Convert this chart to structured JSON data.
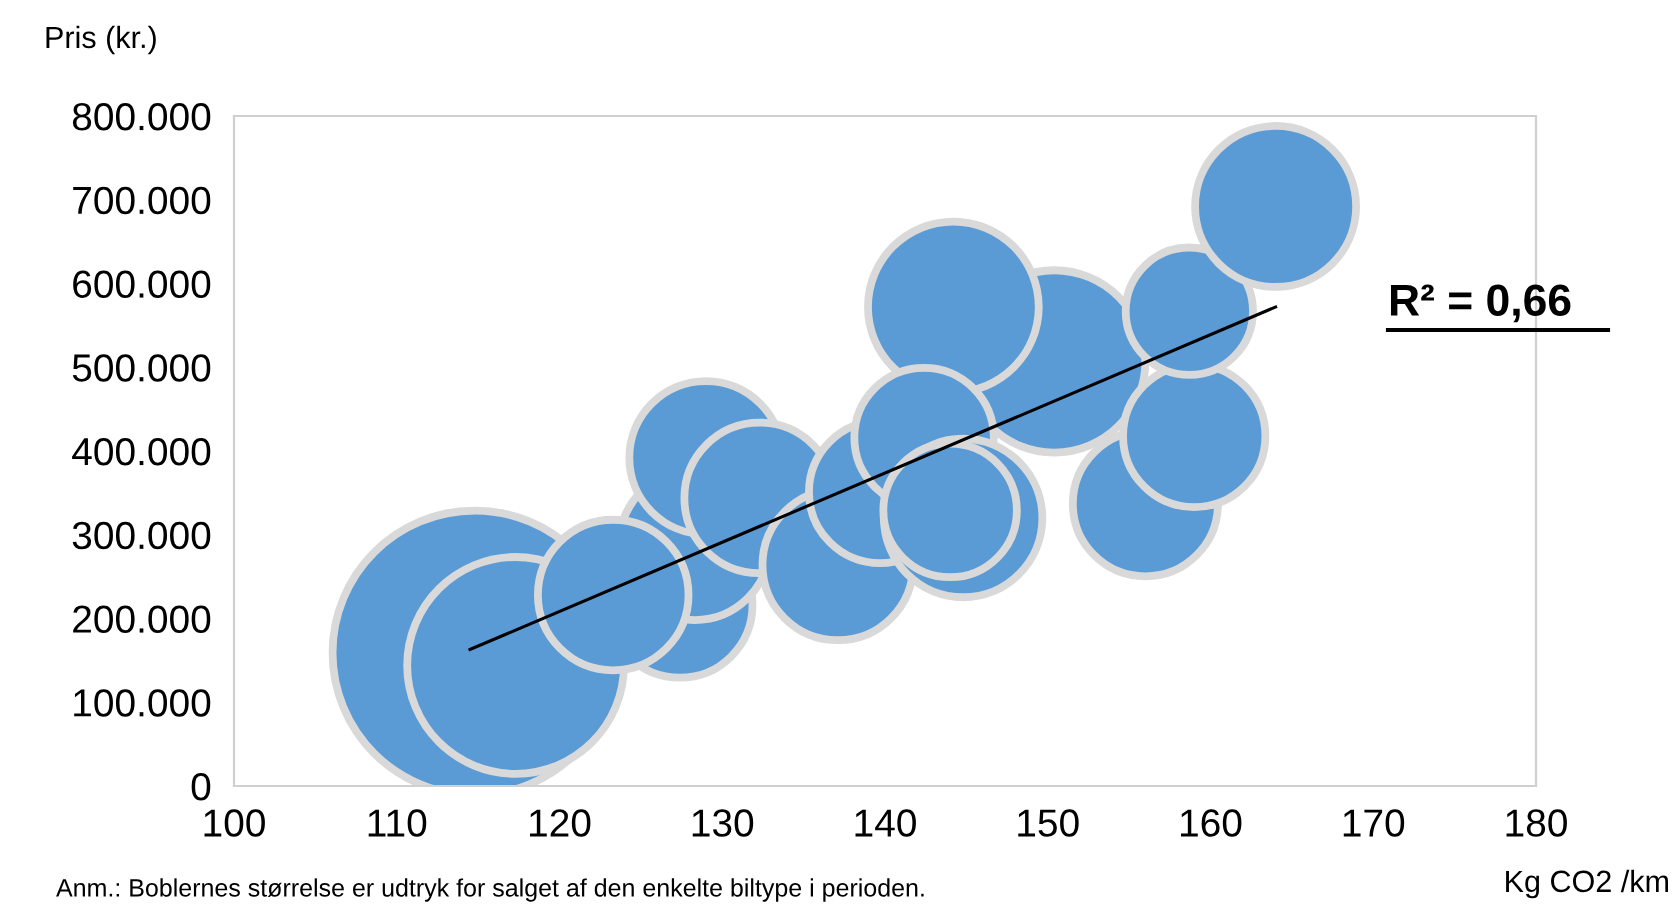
{
  "chart_data": {
    "type": "bubble",
    "relative": false,
    "xlabel": "Kg CO2 /km",
    "ylabel": "Pris (kr.)",
    "xlim": [
      100,
      180
    ],
    "xticks": [
      100,
      110,
      120,
      130,
      140,
      150,
      160,
      170,
      180
    ],
    "ylim": [
      0,
      800000
    ],
    "yticks": [
      {
        "value": 0,
        "label": "0"
      },
      {
        "value": 100000,
        "label": "100.000"
      },
      {
        "value": 200000,
        "label": "200.000"
      },
      {
        "value": 300000,
        "label": "300.000"
      },
      {
        "value": 400000,
        "label": "400.000"
      },
      {
        "value": 500000,
        "label": "500.000"
      },
      {
        "value": 600000,
        "label": "600.000"
      },
      {
        "value": 700000,
        "label": "700.000"
      },
      {
        "value": 800000,
        "label": "800.000"
      }
    ],
    "grid": false,
    "legend": false,
    "series": [
      {
        "color": "#5b9bd5",
        "x": [
          114.8,
          117.3,
          127.4,
          128.3,
          129.0,
          123.3,
          132.3,
          137.1,
          139.7,
          150.4,
          144.2,
          142.4,
          144.8,
          144.0,
          156.0,
          159.0,
          158.7,
          164.0
        ],
        "values": [
          159000,
          144000,
          216000,
          288000,
          392000,
          228000,
          344000,
          264000,
          351000,
          507000,
          572000,
          416000,
          320000,
          329000,
          337000,
          418000,
          567000,
          692000
        ],
        "sizes": [
          1,
          0.58,
          0.26,
          0.28,
          0.29,
          0.28,
          0.28,
          0.28,
          0.25,
          0.41,
          0.36,
          0.24,
          0.31,
          0.22,
          0.26,
          0.25,
          0.2,
          0.32
        ]
      },
      {
        "type": "line",
        "color": "#000000",
        "x": [
          114.5,
          164.0
        ],
        "values": [
          163000,
          572000
        ]
      }
    ],
    "annotations": [
      "R² = 0,66",
      "Anm.: Boblernes størrelse er udtryk for salget af den enkelte biltype i perioden."
    ]
  }
}
